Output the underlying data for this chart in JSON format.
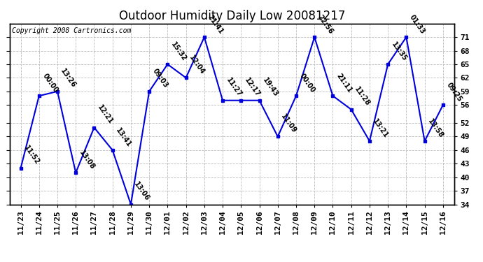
{
  "title": "Outdoor Humidity Daily Low 20081217",
  "copyright": "Copyright 2008 Cartronics.com",
  "line_color": "#0000dd",
  "marker_color": "#0000dd",
  "background_color": "#ffffff",
  "plot_bg_color": "#ffffff",
  "grid_color": "#bbbbbb",
  "x_labels": [
    "11/23",
    "11/24",
    "11/25",
    "11/26",
    "11/27",
    "11/28",
    "11/29",
    "11/30",
    "12/01",
    "12/02",
    "12/03",
    "12/04",
    "12/05",
    "12/06",
    "12/07",
    "12/08",
    "12/09",
    "12/10",
    "12/11",
    "12/12",
    "12/13",
    "12/14",
    "12/15",
    "12/16"
  ],
  "y_values": [
    42,
    58,
    59,
    41,
    51,
    46,
    34,
    59,
    65,
    62,
    71,
    57,
    57,
    57,
    49,
    58,
    71,
    58,
    55,
    48,
    65,
    71,
    48,
    56
  ],
  "time_labels": [
    "11:52",
    "00:00",
    "13:26",
    "13:08",
    "12:21",
    "13:41",
    "13:06",
    "09:03",
    "15:32",
    "12:04",
    "21:41",
    "11:27",
    "12:17",
    "19:43",
    "11:09",
    "00:00",
    "22:56",
    "21:11",
    "11:28",
    "13:21",
    "13:35",
    "01:33",
    "13:58",
    "09:25"
  ],
  "ylim_min": 34,
  "ylim_max": 74,
  "yticks": [
    34,
    37,
    40,
    43,
    46,
    49,
    52,
    56,
    59,
    62,
    65,
    68,
    71
  ],
  "title_fontsize": 12,
  "label_fontsize": 7,
  "tick_fontsize": 8,
  "copyright_fontsize": 7
}
